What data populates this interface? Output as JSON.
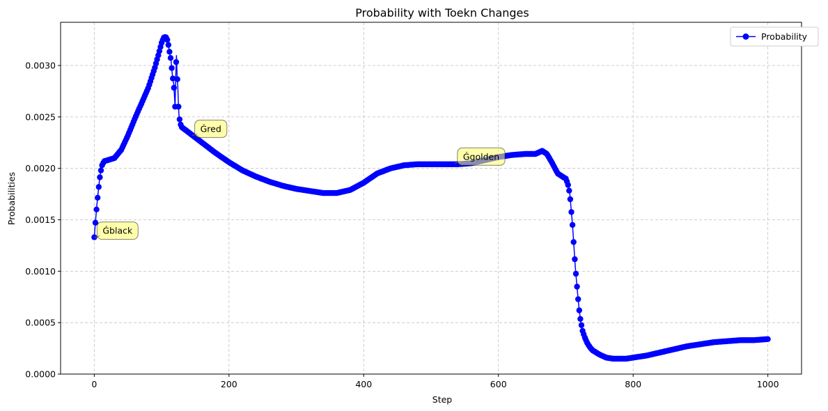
{
  "chart_data": {
    "type": "line",
    "title": "Probability with Toekn Changes",
    "xlabel": "Step",
    "ylabel": "Probabilities",
    "xlim": [
      -50,
      1050
    ],
    "ylim": [
      0.0,
      0.00342
    ],
    "xticks": [
      0,
      200,
      400,
      600,
      800,
      1000
    ],
    "xtick_labels": [
      "0",
      "200",
      "400",
      "600",
      "800",
      "1000"
    ],
    "yticks": [
      0.0,
      0.0005,
      0.001,
      0.0015,
      0.002,
      0.0025,
      0.003
    ],
    "ytick_labels": [
      "0.0000",
      "0.0005",
      "0.0010",
      "0.0015",
      "0.0020",
      "0.0025",
      "0.0030"
    ],
    "grid": true,
    "legend_position": "top-right",
    "series": [
      {
        "name": "Probability",
        "color": "#0000ff",
        "marker": "circle",
        "x": [
          0,
          2,
          4,
          6,
          8,
          10,
          12,
          15,
          20,
          30,
          40,
          50,
          60,
          70,
          80,
          90,
          95,
          100,
          103,
          106,
          108,
          110,
          112,
          114,
          116,
          118,
          120,
          121,
          122,
          123,
          124,
          125,
          126,
          128,
          130,
          140,
          150,
          160,
          180,
          200,
          220,
          240,
          260,
          280,
          300,
          320,
          340,
          360,
          380,
          400,
          420,
          440,
          460,
          480,
          500,
          520,
          540,
          560,
          580,
          600,
          620,
          640,
          655,
          665,
          672,
          680,
          688,
          695,
          700,
          703,
          706,
          708,
          710,
          712,
          714,
          716,
          718,
          720,
          722,
          725,
          728,
          732,
          736,
          740,
          750,
          760,
          770,
          780,
          790,
          800,
          820,
          840,
          860,
          880,
          900,
          920,
          940,
          960,
          980,
          1000
        ],
        "y": [
          0.00133,
          0.0015,
          0.00165,
          0.00178,
          0.0019,
          0.00198,
          0.00204,
          0.00207,
          0.00208,
          0.0021,
          0.00218,
          0.00232,
          0.00248,
          0.00263,
          0.00278,
          0.00298,
          0.0031,
          0.00322,
          0.00327,
          0.00328,
          0.00326,
          0.0032,
          0.00312,
          0.00305,
          0.0029,
          0.00282,
          0.0026,
          0.0029,
          0.0031,
          0.0029,
          0.0028,
          0.0026,
          0.0025,
          0.00243,
          0.0024,
          0.00235,
          0.0023,
          0.00225,
          0.00215,
          0.00206,
          0.00198,
          0.00192,
          0.00187,
          0.00183,
          0.0018,
          0.00178,
          0.00176,
          0.00176,
          0.00179,
          0.00186,
          0.00195,
          0.002,
          0.00203,
          0.00204,
          0.00204,
          0.00204,
          0.00204,
          0.00205,
          0.00208,
          0.00211,
          0.00213,
          0.00214,
          0.00214,
          0.00217,
          0.00214,
          0.00205,
          0.00195,
          0.00192,
          0.0019,
          0.00185,
          0.00175,
          0.0016,
          0.00145,
          0.00125,
          0.00105,
          0.0009,
          0.00075,
          0.00062,
          0.00052,
          0.00042,
          0.00036,
          0.0003,
          0.00026,
          0.00023,
          0.00019,
          0.00016,
          0.00015,
          0.00015,
          0.00015,
          0.00016,
          0.00018,
          0.00021,
          0.00024,
          0.00027,
          0.00029,
          0.00031,
          0.00032,
          0.00033,
          0.00033,
          0.00034
        ]
      }
    ],
    "annotations": [
      {
        "text": "Ġblack",
        "x": 0,
        "y": 0.00133
      },
      {
        "text": "Ġred",
        "x": 145,
        "y": 0.00232
      },
      {
        "text": "Ġgolden",
        "x": 535,
        "y": 0.00205
      }
    ],
    "annotation_box_color": "#ffff66"
  }
}
